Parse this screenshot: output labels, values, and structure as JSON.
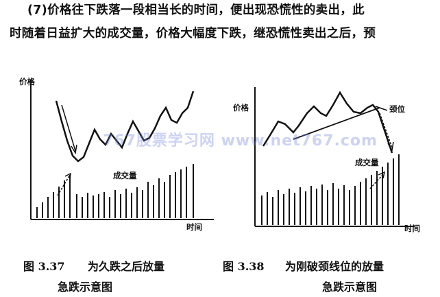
{
  "paragraph": {
    "line1": "(7)价格往下跌落一段相当长的时间，便出现恐慌性的卖出，此",
    "line2": "时随着日益扩大的成交量，价格大幅度下跌，继恐慌性卖出之后，预"
  },
  "figure_left": {
    "y_label": "价格",
    "x_label": "时间",
    "volume_label": "成交量",
    "caption_number": "图 3.37",
    "caption_line1": "为久跌之后放量",
    "caption_line2": "急跌示意图"
  },
  "figure_right": {
    "y_label": "价格",
    "x_label": "时间",
    "volume_label": "成交量",
    "neckline_label": "颈位",
    "caption_number": "图 3.38",
    "caption_line1": "为刚破颈线位的放量",
    "caption_line2": "急跌示意图"
  },
  "watermark": "767股票学习网 www.net767.com"
}
